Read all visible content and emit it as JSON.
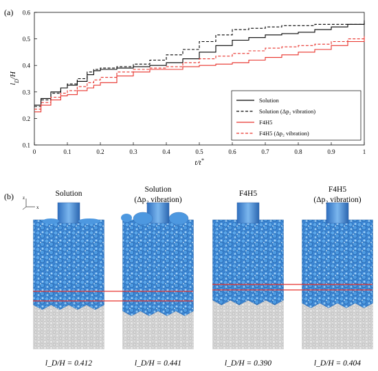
{
  "panel_a_label": "(a)",
  "panel_b_label": "(b)",
  "chart_data": {
    "type": "line",
    "xlabel": "t/t*",
    "ylabel": "l_D/H",
    "xlim": [
      0,
      1
    ],
    "ylim": [
      0.1,
      0.6
    ],
    "xticks": [
      "0",
      "0.1",
      "0.2",
      "0.3",
      "0.4",
      "0.5",
      "0.6",
      "0.7",
      "0.8",
      "0.9",
      "1"
    ],
    "yticks": [
      "0.1",
      "0.2",
      "0.3",
      "0.4",
      "0.5",
      "0.6"
    ],
    "grid": false,
    "legend_position": "bottom-right",
    "series": [
      {
        "name": "Solution",
        "color": "#000000",
        "dash": "solid",
        "x": [
          0,
          0.02,
          0.05,
          0.08,
          0.1,
          0.13,
          0.16,
          0.18,
          0.2,
          0.25,
          0.3,
          0.35,
          0.4,
          0.45,
          0.5,
          0.55,
          0.6,
          0.65,
          0.7,
          0.75,
          0.8,
          0.85,
          0.9,
          0.95,
          1.0
        ],
        "y": [
          0.25,
          0.275,
          0.3,
          0.315,
          0.325,
          0.34,
          0.365,
          0.38,
          0.385,
          0.39,
          0.395,
          0.4,
          0.41,
          0.425,
          0.45,
          0.475,
          0.495,
          0.505,
          0.515,
          0.52,
          0.525,
          0.535,
          0.545,
          0.555,
          0.57
        ]
      },
      {
        "name": "Solution (Δp₂ vibration)",
        "color": "#000000",
        "dash": "dashed",
        "x": [
          0,
          0.02,
          0.05,
          0.08,
          0.1,
          0.13,
          0.16,
          0.18,
          0.2,
          0.25,
          0.3,
          0.35,
          0.4,
          0.45,
          0.5,
          0.55,
          0.6,
          0.65,
          0.7,
          0.75,
          0.8,
          0.85,
          0.9,
          0.95,
          1.0
        ],
        "y": [
          0.245,
          0.27,
          0.295,
          0.315,
          0.33,
          0.35,
          0.375,
          0.385,
          0.39,
          0.395,
          0.405,
          0.42,
          0.44,
          0.46,
          0.49,
          0.515,
          0.535,
          0.54,
          0.545,
          0.55,
          0.55,
          0.555,
          0.555,
          0.555,
          0.565
        ]
      },
      {
        "name": "F4H5",
        "color": "#e8312a",
        "dash": "solid",
        "x": [
          0,
          0.02,
          0.05,
          0.08,
          0.1,
          0.13,
          0.16,
          0.18,
          0.2,
          0.25,
          0.3,
          0.35,
          0.4,
          0.45,
          0.5,
          0.55,
          0.6,
          0.65,
          0.7,
          0.75,
          0.8,
          0.85,
          0.9,
          0.95,
          1.0
        ],
        "y": [
          0.225,
          0.25,
          0.27,
          0.285,
          0.29,
          0.305,
          0.315,
          0.325,
          0.335,
          0.36,
          0.375,
          0.385,
          0.385,
          0.395,
          0.4,
          0.405,
          0.41,
          0.42,
          0.43,
          0.44,
          0.45,
          0.46,
          0.475,
          0.49,
          0.51
        ]
      },
      {
        "name": "F4H5 (Δp₂ vibration)",
        "color": "#e8312a",
        "dash": "dashed",
        "x": [
          0,
          0.02,
          0.05,
          0.08,
          0.1,
          0.13,
          0.16,
          0.18,
          0.2,
          0.25,
          0.3,
          0.35,
          0.4,
          0.45,
          0.5,
          0.55,
          0.6,
          0.65,
          0.7,
          0.75,
          0.8,
          0.85,
          0.9,
          0.95,
          1.0
        ],
        "y": [
          0.235,
          0.26,
          0.28,
          0.295,
          0.305,
          0.32,
          0.335,
          0.345,
          0.355,
          0.375,
          0.385,
          0.39,
          0.395,
          0.41,
          0.425,
          0.435,
          0.445,
          0.455,
          0.465,
          0.47,
          0.475,
          0.48,
          0.49,
          0.5,
          0.51
        ]
      }
    ]
  },
  "panel_b": {
    "axis_z": "z",
    "axis_x": "x",
    "colors": {
      "droplet": "#3f86d6",
      "matrix": "#bdbdbd",
      "interface_line": "#e8312a"
    },
    "simulations": [
      {
        "title_line1": "Solution",
        "title_line2": "",
        "value_label": "l_D/H = 0.412",
        "ld_over_h": 0.412
      },
      {
        "title_line1": "Solution",
        "title_line2": "(Δp₂ vibration)",
        "value_label": "l_D/H = 0.441",
        "ld_over_h": 0.441
      },
      {
        "title_line1": "F4H5",
        "title_line2": "",
        "value_label": "l_D/H = 0.390",
        "ld_over_h": 0.39
      },
      {
        "title_line1": "F4H5",
        "title_line2": "(Δp₂ vibration)",
        "value_label": "l_D/H = 0.404",
        "ld_over_h": 0.404
      }
    ]
  }
}
